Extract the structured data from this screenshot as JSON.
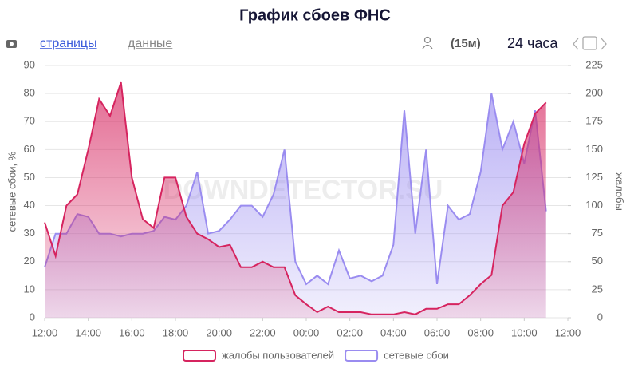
{
  "toolbar": {
    "tabs": [
      "страницы",
      "данные"
    ],
    "interval": "(15м)",
    "range": "24 часа"
  },
  "chart_data": {
    "type": "area",
    "title": "График сбоев ФНС",
    "watermark": "DOWNDETECTOR.SU",
    "y_label": "сетевые сбои, %",
    "y2_label": "жалобы",
    "x": [
      0,
      0.5,
      1,
      1.5,
      2,
      2.5,
      3,
      3.5,
      4,
      4.5,
      5,
      5.5,
      6,
      6.5,
      7,
      7.5,
      8,
      8.5,
      9,
      9.5,
      10,
      10.5,
      11,
      11.5,
      12,
      12.5,
      13,
      13.5,
      14,
      14.5,
      15,
      15.5,
      16,
      16.5,
      17,
      17.5,
      18,
      18.5,
      19,
      19.5,
      20,
      20.5,
      21,
      21.5,
      22,
      22.5,
      23
    ],
    "xlim": [
      0,
      24
    ],
    "xticks": [
      {
        "value": 0,
        "label": "12:00"
      },
      {
        "value": 2,
        "label": "14:00"
      },
      {
        "value": 4,
        "label": "16:00"
      },
      {
        "value": 6,
        "label": "18:00"
      },
      {
        "value": 8,
        "label": "20:00"
      },
      {
        "value": 10,
        "label": "22:00"
      },
      {
        "value": 12,
        "label": "00:00"
      },
      {
        "value": 14,
        "label": "02:00"
      },
      {
        "value": 16,
        "label": "04:00"
      },
      {
        "value": 18,
        "label": "06:00"
      },
      {
        "value": 20,
        "label": "08:00"
      },
      {
        "value": 22,
        "label": "10:00"
      },
      {
        "value": 24,
        "label": "12:00"
      }
    ],
    "ylim": [
      0,
      90
    ],
    "yticks": [
      0,
      10,
      20,
      30,
      40,
      50,
      60,
      70,
      80,
      90
    ],
    "y2lim": [
      0,
      225
    ],
    "y2ticks": [
      0,
      25,
      50,
      75,
      100,
      125,
      150,
      175,
      200,
      225
    ],
    "grid": true,
    "series": [
      {
        "name": "жалобы пользователей",
        "color": "#d6245f",
        "axis": "y2",
        "values": [
          85,
          55,
          100,
          110,
          150,
          195,
          180,
          210,
          125,
          88,
          80,
          125,
          125,
          90,
          75,
          70,
          63,
          65,
          45,
          45,
          50,
          45,
          45,
          20,
          12,
          5,
          10,
          5,
          5,
          5,
          3,
          3,
          3,
          5,
          3,
          8,
          8,
          12,
          12,
          20,
          30,
          38,
          100,
          112,
          155,
          182,
          192
        ]
      },
      {
        "name": "сетевые сбои",
        "color": "#9a8cf0",
        "values": [
          18,
          30,
          30,
          37,
          36,
          30,
          30,
          29,
          30,
          30,
          31,
          36,
          35,
          40,
          52,
          30,
          31,
          35,
          40,
          40,
          36,
          44,
          60,
          20,
          12,
          15,
          12,
          24,
          14,
          15,
          13,
          15,
          26,
          74,
          30,
          60,
          12,
          40,
          35,
          37,
          52,
          80,
          60,
          70,
          55,
          74,
          38
        ]
      }
    ]
  }
}
